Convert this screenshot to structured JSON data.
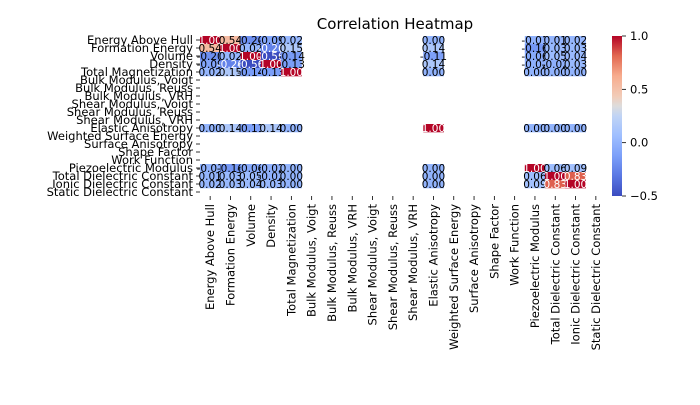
{
  "chart_data": {
    "type": "heatmap",
    "title": "Correlation Heatmap",
    "xlabel": "",
    "ylabel": "",
    "labels": [
      "Energy Above Hull",
      "Formation Energy",
      "Volume",
      "Density",
      "Total Magnetization",
      "Bulk Modulus, Voigt",
      "Bulk Modulus, Reuss",
      "Bulk Modulus, VRH",
      "Shear Modulus, Voigt",
      "Shear Modulus, Reuss",
      "Shear Modulus, VRH",
      "Elastic Anisotropy",
      "Weighted Surface Energy",
      "Surface Anisotropy",
      "Shape Factor",
      "Work Function",
      "Piezoelectric Modulus",
      "Total Dielectric Constant",
      "Ionic Dielectric Constant",
      "Static Dielectric Constant"
    ],
    "value_range": [
      -0.5,
      1.0
    ],
    "colormap": "coolwarm",
    "colorbar": {
      "ticks": [
        1.0,
        0.5,
        0.0,
        -0.5
      ],
      "tick_labels": [
        "1.0",
        "0.5",
        "0.0",
        "−0.5"
      ]
    },
    "matrix": [
      [
        1.0,
        0.54,
        -0.2,
        -0.09,
        0.02,
        null,
        null,
        null,
        null,
        null,
        null,
        0.0,
        null,
        null,
        null,
        null,
        -0.01,
        0.01,
        0.02,
        null
      ],
      [
        0.54,
        1.0,
        0.02,
        -0.26,
        0.15,
        null,
        null,
        null,
        null,
        null,
        null,
        0.14,
        null,
        null,
        null,
        null,
        -0.16,
        0.03,
        0.03,
        null
      ],
      [
        -0.2,
        0.02,
        1.0,
        -0.56,
        -0.14,
        null,
        null,
        null,
        null,
        null,
        null,
        -0.11,
        null,
        null,
        null,
        null,
        -0.06,
        0.05,
        0.04,
        null
      ],
      [
        -0.09,
        -0.26,
        -0.56,
        1.0,
        -0.13,
        null,
        null,
        null,
        null,
        null,
        null,
        0.14,
        null,
        null,
        null,
        null,
        -0.02,
        -0.02,
        0.03,
        null
      ],
      [
        0.02,
        0.15,
        -0.14,
        -0.13,
        1.0,
        null,
        null,
        null,
        null,
        null,
        null,
        -0.0,
        null,
        null,
        null,
        null,
        0.0,
        0.0,
        0.0,
        null
      ],
      [
        null,
        null,
        null,
        null,
        null,
        null,
        null,
        null,
        null,
        null,
        null,
        null,
        null,
        null,
        null,
        null,
        null,
        null,
        null,
        null
      ],
      [
        null,
        null,
        null,
        null,
        null,
        null,
        null,
        null,
        null,
        null,
        null,
        null,
        null,
        null,
        null,
        null,
        null,
        null,
        null,
        null
      ],
      [
        null,
        null,
        null,
        null,
        null,
        null,
        null,
        null,
        null,
        null,
        null,
        null,
        null,
        null,
        null,
        null,
        null,
        null,
        null,
        null
      ],
      [
        null,
        null,
        null,
        null,
        null,
        null,
        null,
        null,
        null,
        null,
        null,
        null,
        null,
        null,
        null,
        null,
        null,
        null,
        null,
        null
      ],
      [
        null,
        null,
        null,
        null,
        null,
        null,
        null,
        null,
        null,
        null,
        null,
        null,
        null,
        null,
        null,
        null,
        null,
        null,
        null,
        null
      ],
      [
        null,
        null,
        null,
        null,
        null,
        null,
        null,
        null,
        null,
        null,
        null,
        null,
        null,
        null,
        null,
        null,
        null,
        null,
        null,
        null
      ],
      [
        0.0,
        0.14,
        -0.11,
        0.14,
        -0.0,
        null,
        null,
        null,
        null,
        null,
        null,
        1.0,
        null,
        null,
        null,
        null,
        0.0,
        -0.0,
        -0.0,
        null
      ],
      [
        null,
        null,
        null,
        null,
        null,
        null,
        null,
        null,
        null,
        null,
        null,
        null,
        null,
        null,
        null,
        null,
        null,
        null,
        null,
        null
      ],
      [
        null,
        null,
        null,
        null,
        null,
        null,
        null,
        null,
        null,
        null,
        null,
        null,
        null,
        null,
        null,
        null,
        null,
        null,
        null,
        null
      ],
      [
        null,
        null,
        null,
        null,
        null,
        null,
        null,
        null,
        null,
        null,
        null,
        null,
        null,
        null,
        null,
        null,
        null,
        null,
        null,
        null
      ],
      [
        null,
        null,
        null,
        null,
        null,
        null,
        null,
        null,
        null,
        null,
        null,
        null,
        null,
        null,
        null,
        null,
        null,
        null,
        null,
        null
      ],
      [
        -0.01,
        -0.16,
        -0.06,
        -0.02,
        0.0,
        null,
        null,
        null,
        null,
        null,
        null,
        0.0,
        null,
        null,
        null,
        null,
        1.0,
        0.06,
        0.09,
        null
      ],
      [
        0.01,
        0.03,
        0.05,
        -0.02,
        0.0,
        null,
        null,
        null,
        null,
        null,
        null,
        -0.0,
        null,
        null,
        null,
        null,
        0.06,
        1.0,
        0.83,
        null
      ],
      [
        0.02,
        0.03,
        0.04,
        0.03,
        0.0,
        null,
        null,
        null,
        null,
        null,
        null,
        -0.0,
        null,
        null,
        null,
        null,
        0.09,
        0.83,
        1.0,
        null
      ],
      [
        null,
        null,
        null,
        null,
        null,
        null,
        null,
        null,
        null,
        null,
        null,
        null,
        null,
        null,
        null,
        null,
        null,
        null,
        null,
        null
      ]
    ]
  }
}
